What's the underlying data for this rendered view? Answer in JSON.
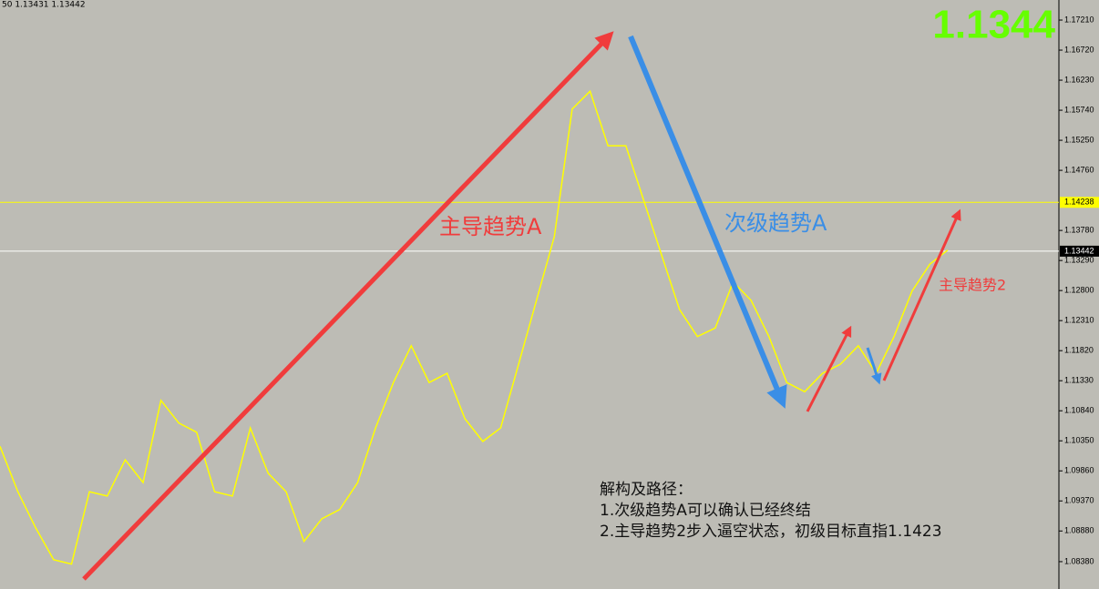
{
  "chart_data": {
    "type": "line",
    "header_text": "50 1.13431 1.13442",
    "price_display": "1.1344",
    "annotations": [
      "主导趋势A",
      "次级趋势A",
      "主导趋势2"
    ],
    "notes": [
      "解构及路径：",
      "1.次级趋势A可以确认已经终结",
      "2.主导趋势2步入逼空状态，初级目标直指1.1423"
    ],
    "ylim": [
      1.07934,
      1.17537
    ],
    "yticks": [
      {
        "value": 1.1721,
        "label": "1.17210"
      },
      {
        "value": 1.1672,
        "label": "1.16720"
      },
      {
        "value": 1.1623,
        "label": "1.16230"
      },
      {
        "value": 1.1574,
        "label": "1.15740"
      },
      {
        "value": 1.1525,
        "label": "1.15250"
      },
      {
        "value": 1.1476,
        "label": "1.14760"
      },
      {
        "value": 1.1378,
        "label": "1.13780"
      },
      {
        "value": 1.1329,
        "label": "1.13290"
      },
      {
        "value": 1.128,
        "label": "1.12800"
      },
      {
        "value": 1.1231,
        "label": "1.12310"
      },
      {
        "value": 1.1182,
        "label": "1.11820"
      },
      {
        "value": 1.1133,
        "label": "1.11330"
      },
      {
        "value": 1.1084,
        "label": "1.10840"
      },
      {
        "value": 1.1035,
        "label": "1.10350"
      },
      {
        "value": 1.0986,
        "label": "1.09860"
      },
      {
        "value": 1.0937,
        "label": "1.09370"
      },
      {
        "value": 1.0888,
        "label": "1.08880"
      },
      {
        "value": 1.0838,
        "label": "1.08380"
      }
    ],
    "hlines": [
      {
        "value": 1.14238,
        "label": "1.14238",
        "color": "#ffff00",
        "box_color": "#ffff00",
        "text_color": "#000000"
      },
      {
        "value": 1.13442,
        "label": "1.13442",
        "color": "#ffffff",
        "box_color": "#000000",
        "text_color": "#ffffff"
      }
    ],
    "series": [
      {
        "color": "#ffff00",
        "values": [
          1.1026,
          1.0952,
          1.0893,
          1.0841,
          1.0834,
          1.0952,
          1.0945,
          1.1004,
          1.0967,
          1.1101,
          1.1064,
          1.1049,
          1.0952,
          1.0945,
          1.1056,
          1.0982,
          1.0952,
          1.0871,
          1.0908,
          1.0923,
          1.0967,
          1.1056,
          1.113,
          1.119,
          1.113,
          1.1145,
          1.1071,
          1.1034,
          1.1056,
          1.116,
          1.1264,
          1.1368,
          1.1576,
          1.1605,
          1.1516,
          1.1516,
          1.1427,
          1.1338,
          1.1249,
          1.1205,
          1.1219,
          1.1294,
          1.1264,
          1.1205,
          1.113,
          1.1115,
          1.1145,
          1.116,
          1.119,
          1.1145,
          1.1205,
          1.1279,
          1.1323,
          1.1346
        ]
      }
    ]
  }
}
